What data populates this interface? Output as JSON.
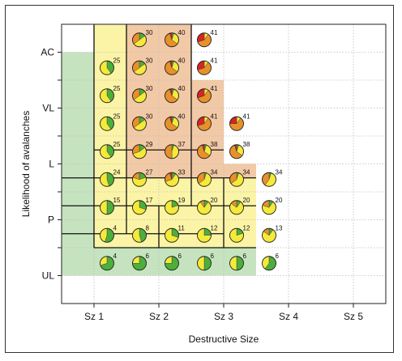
{
  "chart_data": {
    "type": "scatter",
    "xlabel": "Destructive Size",
    "ylabel": "Likelihood of avalanches",
    "x_ticks": [
      "Sz 1",
      "Sz 2",
      "Sz 3",
      "Sz 4",
      "Sz 5"
    ],
    "y_ticks": [
      "UL",
      "P",
      "L",
      "VL",
      "AC"
    ],
    "grid": true,
    "colors": {
      "green": "#4caf3c",
      "yellow": "#f5e93a",
      "orange": "#e8902a",
      "red": "#d62424",
      "bg_green": "#c6e3bf",
      "bg_yellow": "#fbf4a6",
      "bg_orange": "#f2c9a6"
    },
    "zones": [
      {
        "color": "bg_green",
        "x": [
          0.5,
          1.0
        ],
        "y": [
          0.0,
          4.0
        ]
      },
      {
        "color": "bg_green",
        "x": [
          1.0,
          3.5
        ],
        "y": [
          0.0,
          0.5
        ]
      },
      {
        "color": "bg_yellow",
        "x": [
          1.0,
          1.5
        ],
        "y": [
          0.5,
          4.5
        ]
      },
      {
        "color": "bg_yellow",
        "x": [
          1.5,
          3.5
        ],
        "y": [
          0.5,
          1.75
        ]
      },
      {
        "color": "bg_orange",
        "x": [
          1.5,
          2.5
        ],
        "y": [
          1.75,
          4.5
        ]
      },
      {
        "color": "bg_orange",
        "x": [
          2.5,
          3.0
        ],
        "y": [
          1.75,
          3.5
        ]
      },
      {
        "color": "bg_orange",
        "x": [
          3.0,
          3.5
        ],
        "y": [
          1.75,
          2.0
        ]
      }
    ],
    "borders": [
      [
        [
          1.0,
          4.5
        ],
        [
          1.0,
          0.5
        ]
      ],
      [
        [
          1.0,
          0.5
        ],
        [
          3.5,
          0.5
        ]
      ],
      [
        [
          0.5,
          0.75
        ],
        [
          3.0,
          0.75
        ]
      ],
      [
        [
          0.5,
          1.25
        ],
        [
          3.5,
          1.25
        ]
      ],
      [
        [
          0.5,
          1.75
        ],
        [
          3.5,
          1.75
        ]
      ],
      [
        [
          1.0,
          2.25
        ],
        [
          3.0,
          2.25
        ]
      ],
      [
        [
          1.5,
          0.75
        ],
        [
          1.5,
          4.5
        ]
      ],
      [
        [
          2.0,
          0.5
        ],
        [
          2.0,
          1.25
        ]
      ],
      [
        [
          2.5,
          1.25
        ],
        [
          2.5,
          4.5
        ]
      ],
      [
        [
          3.0,
          1.75
        ],
        [
          3.0,
          0.5
        ]
      ]
    ],
    "cells": [
      {
        "x": 1.25,
        "y": 0.25,
        "label": "4",
        "share": {
          "green": 0.7,
          "yellow": 0.3,
          "orange": 0,
          "red": 0
        }
      },
      {
        "x": 1.75,
        "y": 0.25,
        "label": "6",
        "share": {
          "green": 0.75,
          "yellow": 0.25,
          "orange": 0,
          "red": 0
        }
      },
      {
        "x": 2.25,
        "y": 0.25,
        "label": "6",
        "share": {
          "green": 0.75,
          "yellow": 0.25,
          "orange": 0,
          "red": 0
        }
      },
      {
        "x": 2.75,
        "y": 0.25,
        "label": "6",
        "share": {
          "green": 0.5,
          "yellow": 0.5,
          "orange": 0,
          "red": 0
        }
      },
      {
        "x": 3.25,
        "y": 0.25,
        "label": "6",
        "share": {
          "green": 0.5,
          "yellow": 0.5,
          "orange": 0,
          "red": 0
        }
      },
      {
        "x": 3.75,
        "y": 0.25,
        "label": "6",
        "share": {
          "green": 0.6,
          "yellow": 0.4,
          "orange": 0,
          "red": 0
        }
      },
      {
        "x": 1.25,
        "y": 0.75,
        "label": "4",
        "share": {
          "green": 0.55,
          "yellow": 0.45,
          "orange": 0,
          "red": 0
        }
      },
      {
        "x": 1.75,
        "y": 0.75,
        "label": "8",
        "share": {
          "green": 0.45,
          "yellow": 0.55,
          "orange": 0,
          "red": 0
        }
      },
      {
        "x": 2.25,
        "y": 0.75,
        "label": "11",
        "share": {
          "green": 0.3,
          "yellow": 0.7,
          "orange": 0,
          "red": 0
        }
      },
      {
        "x": 2.75,
        "y": 0.75,
        "label": "12",
        "share": {
          "green": 0.25,
          "yellow": 0.75,
          "orange": 0,
          "red": 0
        }
      },
      {
        "x": 3.25,
        "y": 0.75,
        "label": "12",
        "share": {
          "green": 0.2,
          "yellow": 0.8,
          "orange": 0,
          "red": 0
        }
      },
      {
        "x": 3.75,
        "y": 0.75,
        "label": "13",
        "share": {
          "green": 0.1,
          "yellow": 0.75,
          "orange": 0.15,
          "red": 0
        }
      },
      {
        "x": 1.25,
        "y": 1.25,
        "label": "15",
        "share": {
          "green": 0.5,
          "yellow": 0.5,
          "orange": 0,
          "red": 0
        }
      },
      {
        "x": 1.75,
        "y": 1.25,
        "label": "17",
        "share": {
          "green": 0.3,
          "yellow": 0.7,
          "orange": 0,
          "red": 0
        }
      },
      {
        "x": 2.25,
        "y": 1.25,
        "label": "19",
        "share": {
          "green": 0.2,
          "yellow": 0.8,
          "orange": 0,
          "red": 0
        }
      },
      {
        "x": 2.75,
        "y": 1.25,
        "label": "20",
        "share": {
          "green": 0.1,
          "yellow": 0.8,
          "orange": 0.1,
          "red": 0
        }
      },
      {
        "x": 3.25,
        "y": 1.25,
        "label": "20",
        "share": {
          "green": 0.1,
          "yellow": 0.75,
          "orange": 0.15,
          "red": 0
        }
      },
      {
        "x": 3.75,
        "y": 1.25,
        "label": "20",
        "share": {
          "green": 0.1,
          "yellow": 0.7,
          "orange": 0.2,
          "red": 0
        }
      },
      {
        "x": 1.25,
        "y": 1.75,
        "label": "24",
        "share": {
          "green": 0.45,
          "yellow": 0.55,
          "orange": 0,
          "red": 0
        }
      },
      {
        "x": 1.75,
        "y": 1.75,
        "label": "27",
        "share": {
          "green": 0.2,
          "yellow": 0.6,
          "orange": 0.2,
          "red": 0
        }
      },
      {
        "x": 2.25,
        "y": 1.75,
        "label": "33",
        "share": {
          "green": 0.1,
          "yellow": 0.6,
          "orange": 0.25,
          "red": 0.05
        }
      },
      {
        "x": 2.75,
        "y": 1.75,
        "label": "34",
        "share": {
          "green": 0.05,
          "yellow": 0.6,
          "orange": 0.35,
          "red": 0
        }
      },
      {
        "x": 3.25,
        "y": 1.75,
        "label": "34",
        "share": {
          "green": 0.05,
          "yellow": 0.6,
          "orange": 0.35,
          "red": 0
        }
      },
      {
        "x": 3.75,
        "y": 1.75,
        "label": "34",
        "share": {
          "green": 0.05,
          "yellow": 0.55,
          "orange": 0.4,
          "red": 0
        }
      },
      {
        "x": 1.25,
        "y": 2.25,
        "label": "25",
        "share": {
          "green": 0.4,
          "yellow": 0.6,
          "orange": 0,
          "red": 0
        }
      },
      {
        "x": 1.75,
        "y": 2.25,
        "label": "29",
        "share": {
          "green": 0.15,
          "yellow": 0.55,
          "orange": 0.3,
          "red": 0
        }
      },
      {
        "x": 2.25,
        "y": 2.25,
        "label": "37",
        "share": {
          "green": 0.05,
          "yellow": 0.45,
          "orange": 0.5,
          "red": 0
        }
      },
      {
        "x": 2.75,
        "y": 2.25,
        "label": "38",
        "share": {
          "green": 0.05,
          "yellow": 0.3,
          "orange": 0.6,
          "red": 0.05
        }
      },
      {
        "x": 3.25,
        "y": 2.25,
        "label": "38",
        "share": {
          "green": 0.05,
          "yellow": 0.3,
          "orange": 0.6,
          "red": 0.05
        }
      },
      {
        "x": 1.25,
        "y": 2.75,
        "label": "25",
        "share": {
          "green": 0.4,
          "yellow": 0.6,
          "orange": 0,
          "red": 0
        }
      },
      {
        "x": 1.75,
        "y": 2.75,
        "label": "30",
        "share": {
          "green": 0.15,
          "yellow": 0.5,
          "orange": 0.35,
          "red": 0
        }
      },
      {
        "x": 2.25,
        "y": 2.75,
        "label": "40",
        "share": {
          "green": 0.05,
          "yellow": 0.3,
          "orange": 0.6,
          "red": 0.05
        }
      },
      {
        "x": 2.75,
        "y": 2.75,
        "label": "41",
        "share": {
          "green": 0,
          "yellow": 0.1,
          "orange": 0.6,
          "red": 0.3
        }
      },
      {
        "x": 3.25,
        "y": 2.75,
        "label": "41",
        "share": {
          "green": 0,
          "yellow": 0.1,
          "orange": 0.65,
          "red": 0.25
        }
      },
      {
        "x": 1.25,
        "y": 3.25,
        "label": "25",
        "share": {
          "green": 0.4,
          "yellow": 0.6,
          "orange": 0,
          "red": 0
        }
      },
      {
        "x": 1.75,
        "y": 3.25,
        "label": "30",
        "share": {
          "green": 0.15,
          "yellow": 0.5,
          "orange": 0.35,
          "red": 0
        }
      },
      {
        "x": 2.25,
        "y": 3.25,
        "label": "40",
        "share": {
          "green": 0.05,
          "yellow": 0.3,
          "orange": 0.6,
          "red": 0.05
        }
      },
      {
        "x": 2.75,
        "y": 3.25,
        "label": "41",
        "share": {
          "green": 0,
          "yellow": 0.1,
          "orange": 0.6,
          "red": 0.3
        }
      },
      {
        "x": 1.25,
        "y": 3.75,
        "label": "25",
        "share": {
          "green": 0.4,
          "yellow": 0.6,
          "orange": 0,
          "red": 0
        }
      },
      {
        "x": 1.75,
        "y": 3.75,
        "label": "30",
        "share": {
          "green": 0.15,
          "yellow": 0.5,
          "orange": 0.35,
          "red": 0
        }
      },
      {
        "x": 2.25,
        "y": 3.75,
        "label": "40",
        "share": {
          "green": 0.05,
          "yellow": 0.3,
          "orange": 0.6,
          "red": 0.05
        }
      },
      {
        "x": 2.75,
        "y": 3.75,
        "label": "41",
        "share": {
          "green": 0,
          "yellow": 0.1,
          "orange": 0.6,
          "red": 0.3
        }
      },
      {
        "x": 1.75,
        "y": 4.25,
        "label": "30",
        "share": {
          "green": 0.15,
          "yellow": 0.5,
          "orange": 0.35,
          "red": 0
        }
      },
      {
        "x": 2.25,
        "y": 4.25,
        "label": "40",
        "share": {
          "green": 0.05,
          "yellow": 0.3,
          "orange": 0.6,
          "red": 0.05
        }
      },
      {
        "x": 2.75,
        "y": 4.25,
        "label": "41",
        "share": {
          "green": 0,
          "yellow": 0.1,
          "orange": 0.6,
          "red": 0.3
        }
      }
    ]
  }
}
